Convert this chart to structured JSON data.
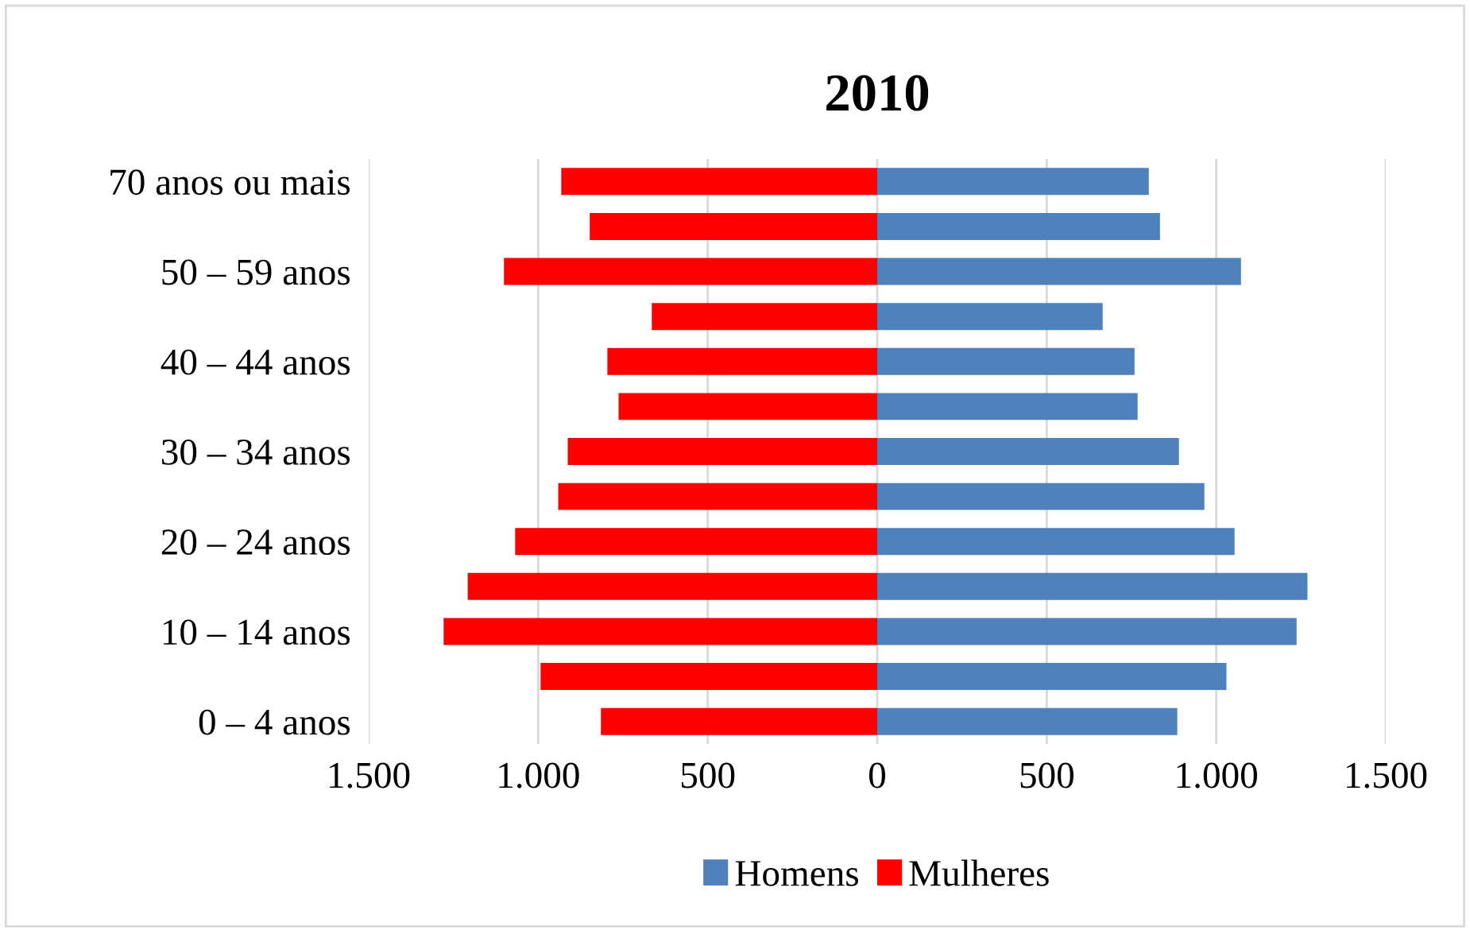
{
  "chart_data": {
    "type": "bar",
    "orientation": "horizontal",
    "title": "2010",
    "categories": [
      "70 anos ou mais",
      null,
      "50 – 59 anos",
      null,
      "40 – 44 anos",
      null,
      "30 – 34 anos",
      null,
      "20 – 24 anos",
      null,
      "10 – 14 anos",
      null,
      "0 – 4 anos"
    ],
    "series": [
      {
        "name": "Homens",
        "color": "#4f81bd",
        "values": [
          801,
          834,
          1073,
          665,
          759,
          768,
          890,
          965,
          1054,
          1269,
          1237,
          1030,
          885
        ]
      },
      {
        "name": "Mulheres",
        "color": "#ff0000",
        "values": [
          -932,
          -848,
          -1101,
          -665,
          -796,
          -763,
          -913,
          -941,
          -1068,
          -1208,
          -1279,
          -993,
          -815
        ]
      }
    ],
    "xlim": [
      -1500,
      1500
    ],
    "xticks": [
      {
        "value": -1500,
        "label": "1.500"
      },
      {
        "value": -1000,
        "label": "1.000"
      },
      {
        "value": -500,
        "label": "500"
      },
      0,
      500,
      {
        "value": 1000,
        "label": "1.000"
      },
      {
        "value": 1500,
        "label": "1.500"
      }
    ],
    "grid": "x",
    "legend": "bottom",
    "stacked": true
  }
}
